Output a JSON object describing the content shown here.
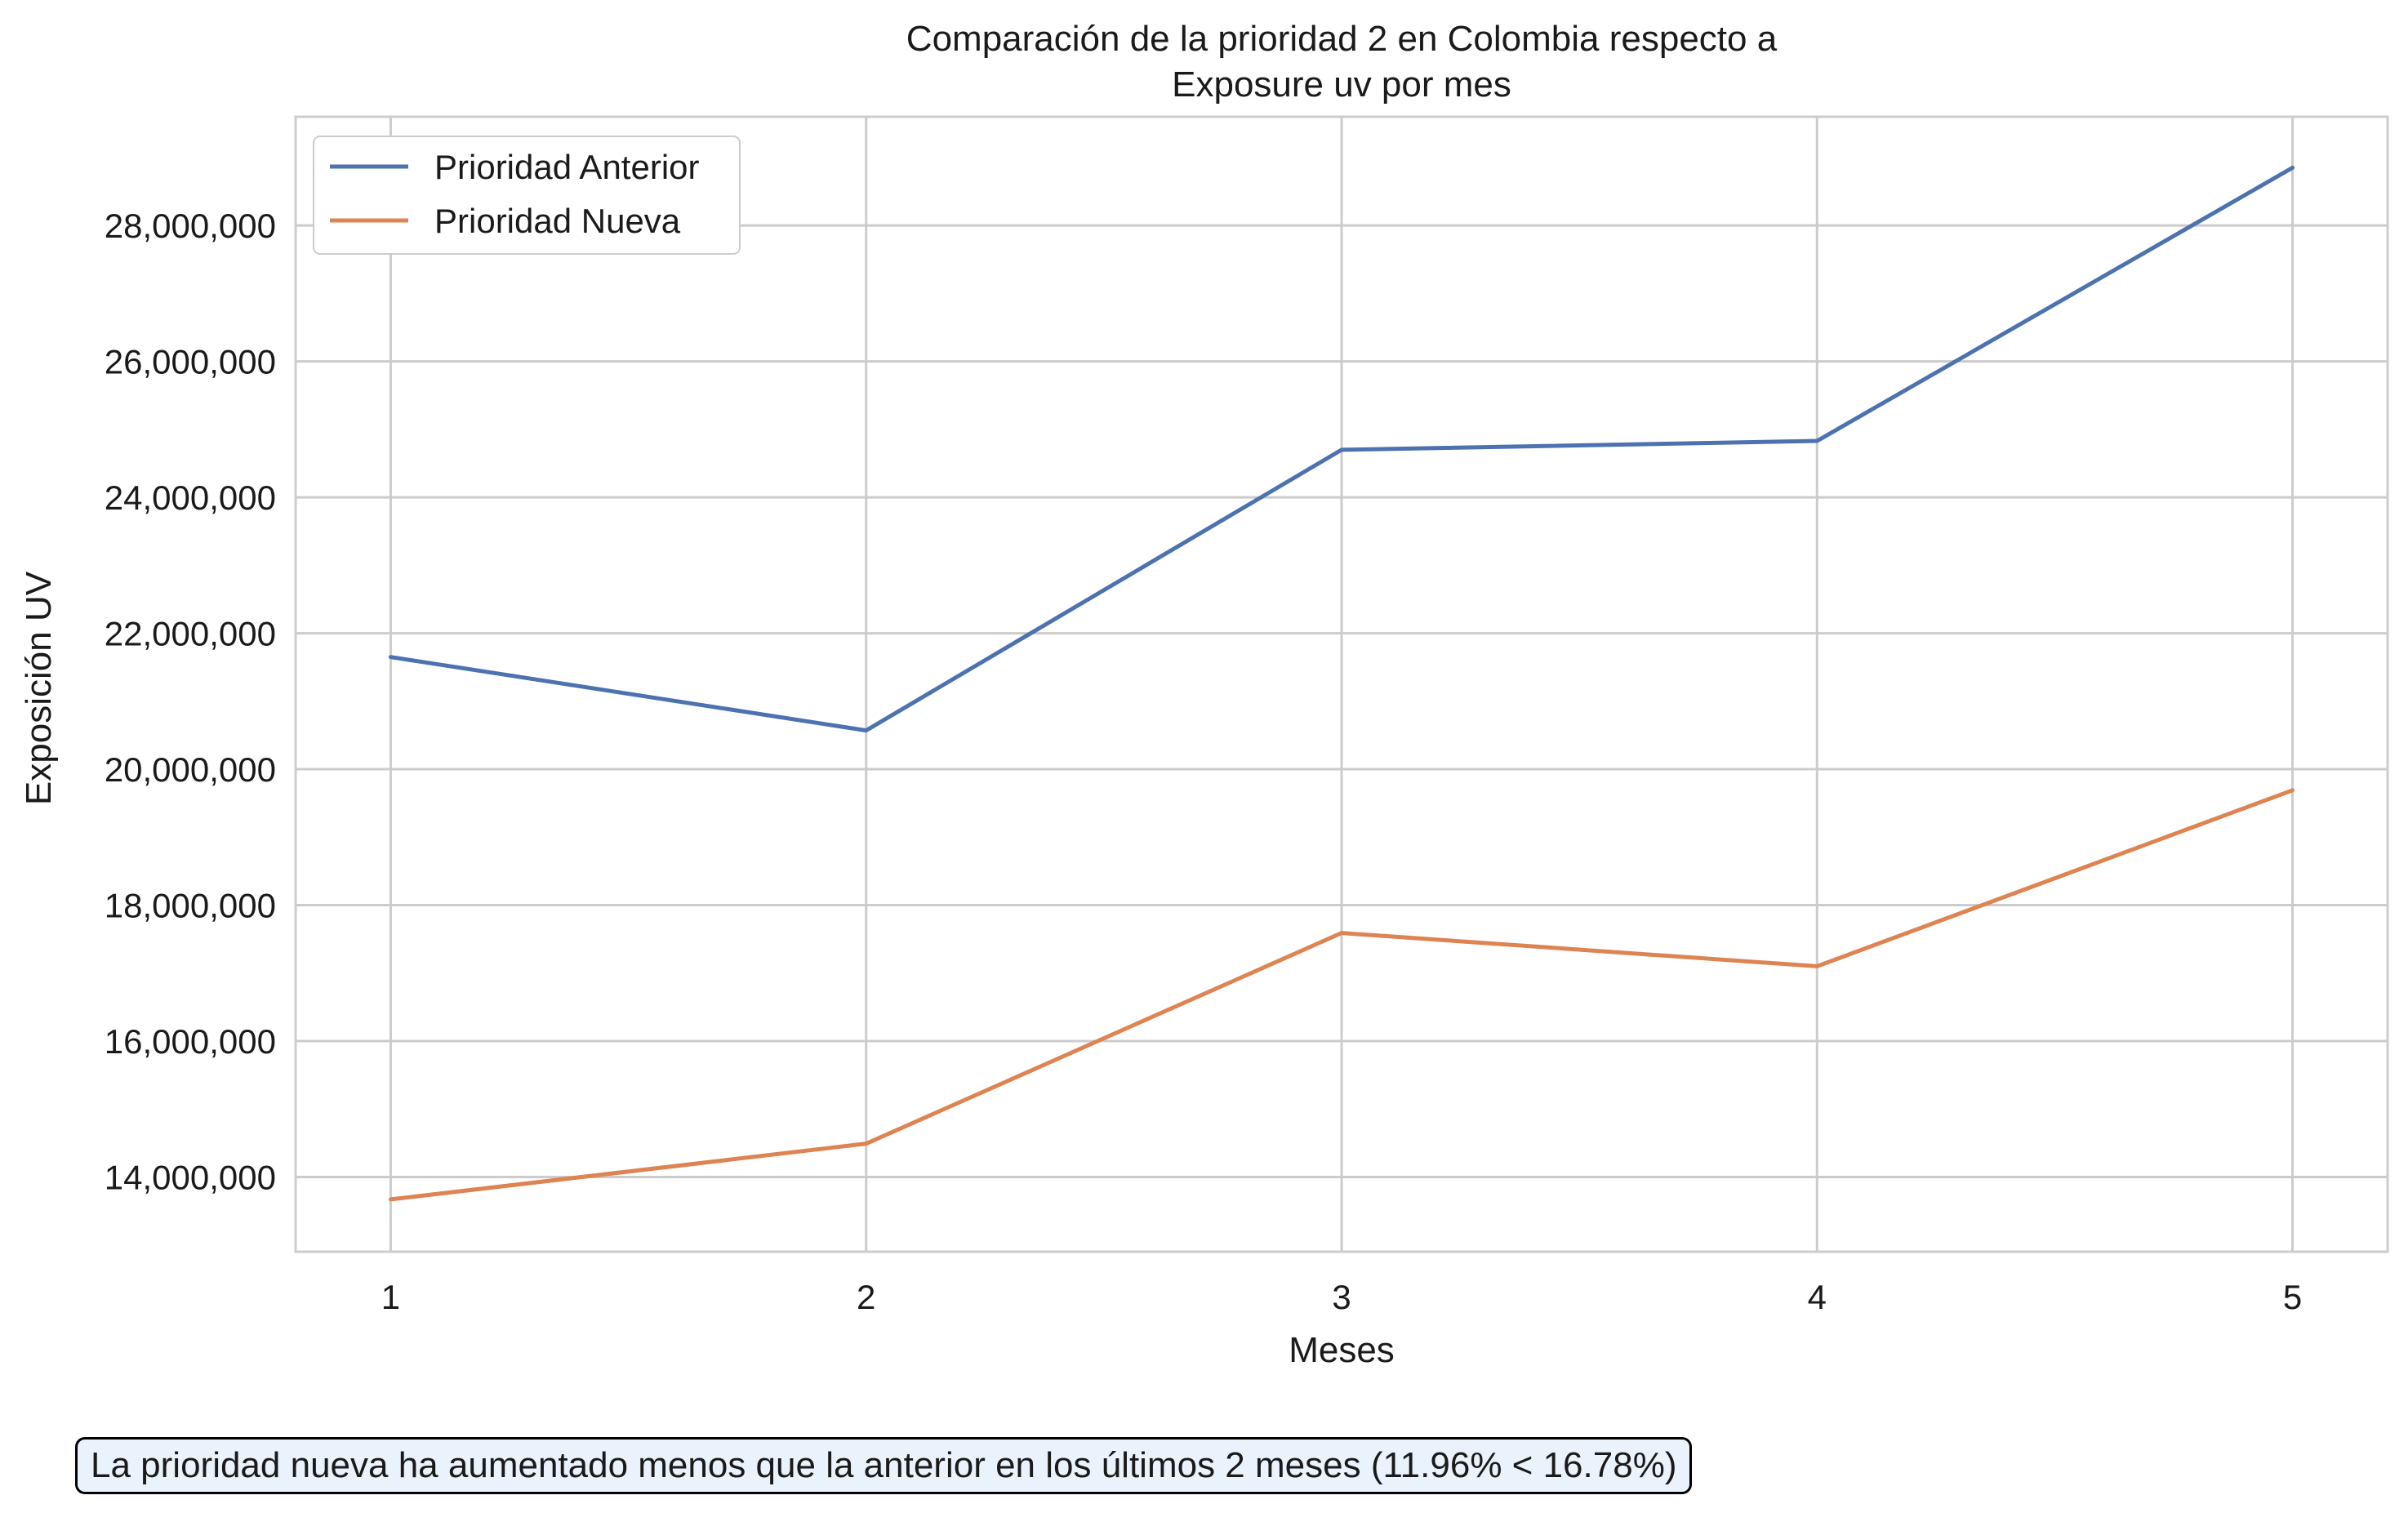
{
  "chart_data": {
    "type": "line",
    "title_lines": [
      "Comparación de la prioridad 2 en Colombia respecto a",
      "Exposure uv por mes"
    ],
    "xlabel": "Meses",
    "ylabel": "Exposición UV",
    "x": [
      1,
      2,
      3,
      4,
      5
    ],
    "x_tick_labels": [
      "1",
      "2",
      "3",
      "4",
      "5"
    ],
    "y_ticks": [
      14000000,
      16000000,
      18000000,
      20000000,
      22000000,
      24000000,
      26000000,
      28000000
    ],
    "y_tick_labels": [
      "14,000,000",
      "16,000,000",
      "18,000,000",
      "20,000,000",
      "22,000,000",
      "24,000,000",
      "26,000,000",
      "28,000,000"
    ],
    "xlim": [
      0.8,
      5.2
    ],
    "ylim": [
      12900000,
      29600000
    ],
    "grid": true,
    "legend_position": "top-left",
    "series": [
      {
        "name": "Prioridad Anterior",
        "color": "#4c72b0",
        "values": [
          21650000,
          20570000,
          24700000,
          24830000,
          28850000
        ]
      },
      {
        "name": "Prioridad Nueva",
        "color": "#dd8452",
        "values": [
          13670000,
          14490000,
          17590000,
          17100000,
          19690000
        ]
      }
    ]
  },
  "footnote": "La prioridad nueva ha aumentado menos que la anterior en los últimos 2 meses (11.96% < 16.78%)"
}
